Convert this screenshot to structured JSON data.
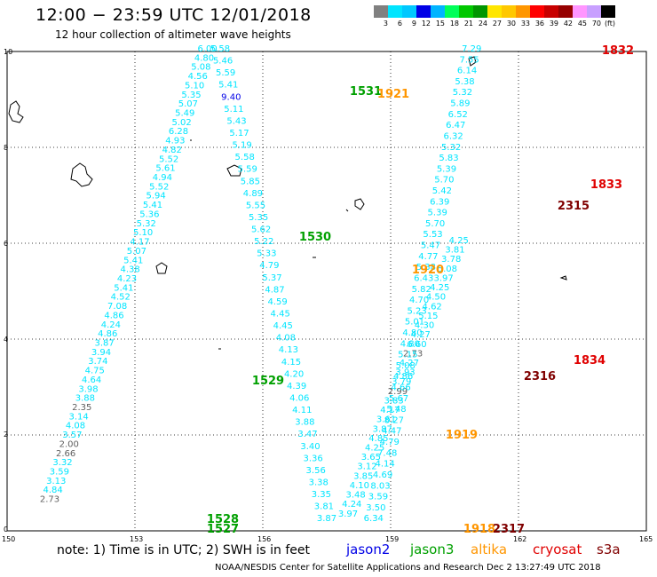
{
  "header": {
    "title": "12:00 − 23:59 UTC 12/01/2018",
    "subtitle": "12 hour collection of altimeter wave heights"
  },
  "colorbar": {
    "labels": [
      "3",
      "6",
      "9",
      "12",
      "15",
      "18",
      "21",
      "24",
      "27",
      "30",
      "33",
      "36",
      "39",
      "42",
      "45",
      "70",
      "(ft)"
    ],
    "colors": [
      "#808080",
      "#00e5ff",
      "#00c8ff",
      "#0000e6",
      "#00b4ff",
      "#00ff5a",
      "#00c800",
      "#009600",
      "#ffe600",
      "#ffc800",
      "#ff9600",
      "#ff0000",
      "#c80000",
      "#960000",
      "#ff96ff",
      "#c8a0ff",
      "#000000"
    ]
  },
  "axes": {
    "x_ticks": [
      "150",
      "153",
      "156",
      "159",
      "162",
      "165"
    ],
    "y_ticks": [
      "0",
      "2",
      "4",
      "6",
      "8",
      "10"
    ]
  },
  "tracks": [
    {
      "id": "track1",
      "color": "#00e5ff",
      "x0": 1.0,
      "y0": 0.6,
      "x1": 4.7,
      "y1": 10.0,
      "values": [
        "2.73",
        "4.84",
        "3.13",
        "3.59",
        "3.32",
        "2.66",
        "2.00",
        "3.57",
        "4.08",
        "3.14",
        "2.35",
        "3.88",
        "3.98",
        "4.64",
        "4.75",
        "3.74",
        "3.94",
        "3.87",
        "4.86",
        "4.24",
        "4.86",
        "7.08",
        "4.52",
        "5.41",
        "4.23",
        "4.38",
        "5.41",
        "5.07",
        "4.17",
        "5.10",
        "5.32",
        "5.36",
        "5.41",
        "5.94",
        "5.52",
        "4.94",
        "5.61",
        "5.52",
        "4.82",
        "4.93",
        "6.28",
        "5.02",
        "5.49",
        "5.07",
        "5.35",
        "5.10",
        "4.56",
        "5.08",
        "4.80",
        "6.00"
      ]
    },
    {
      "id": "track2",
      "color": "#00e5ff",
      "x0": 5.0,
      "y0": 10.0,
      "x1": 7.5,
      "y1": 0.2,
      "values": [
        "5.58",
        "5.46",
        "5.59",
        "5.41",
        "9.40",
        "5.11",
        "5.43",
        "5.17",
        "5.19",
        "5.58",
        "5.59",
        "5.85",
        "4.89",
        "5.55",
        "5.35",
        "5.62",
        "5.22",
        "5.33",
        "4.79",
        "5.37",
        "4.87",
        "4.59",
        "4.45",
        "4.45",
        "4.08",
        "4.13",
        "4.15",
        "4.20",
        "4.39",
        "4.06",
        "4.11",
        "3.88",
        "3.47",
        "3.40",
        "3.36",
        "3.56",
        "3.38",
        "3.35",
        "3.81",
        "3.87"
      ]
    },
    {
      "id": "track3",
      "color": "#00e5ff",
      "x0": 8.0,
      "y0": 0.3,
      "x1": 10.6,
      "y1": 6.0,
      "values": [
        "3.97",
        "4.24",
        "3.48",
        "4.10",
        "3.85",
        "3.12",
        "3.65",
        "4.25",
        "4.85",
        "3.87",
        "3.61",
        "4.17",
        "3.83",
        "2.99",
        "3.79",
        "3.93",
        "4.27",
        "2.73",
        "6.60",
        "4.27",
        "4.30",
        "5.15",
        "4.62",
        "4.50",
        "4.25",
        "3.97",
        "5.08",
        "3.78",
        "3.81",
        "4.25"
      ]
    },
    {
      "id": "track4",
      "color": "#00e5ff",
      "x0": 8.6,
      "y0": 0.2,
      "x1": 10.9,
      "y1": 10.0,
      "values": [
        "6.34",
        "3.50",
        "3.59",
        "8.03",
        "4.69",
        "4.14",
        "7.48",
        "4.79",
        "4.47",
        "8.27",
        "5.48",
        "5.67",
        "4.66",
        "4.86",
        "5.08",
        "5.15",
        "4.80",
        "4.80",
        "5.01",
        "5.23",
        "4.70",
        "5.82",
        "6.43",
        "5.38",
        "4.77",
        "5.47",
        "5.53",
        "5.70",
        "5.39",
        "6.39",
        "5.42",
        "5.70",
        "5.39",
        "5.83",
        "5.32",
        "6.32",
        "6.47",
        "6.52",
        "5.89",
        "5.32",
        "5.38",
        "6.14",
        "7.55",
        "7.29"
      ]
    }
  ],
  "labels": [
    {
      "text": "1832",
      "color": "#e00000"
    },
    {
      "text": "1531",
      "color": "#00a000"
    },
    {
      "text": "1921",
      "color": "#ff9600"
    },
    {
      "text": "1833",
      "color": "#e00000"
    },
    {
      "text": "2315",
      "color": "#800000"
    },
    {
      "text": "1530",
      "color": "#00a000"
    },
    {
      "text": "1920",
      "color": "#ff9600"
    },
    {
      "text": "1834",
      "color": "#e00000"
    },
    {
      "text": "1529",
      "color": "#00a000"
    },
    {
      "text": "2316",
      "color": "#800000"
    },
    {
      "text": "1919",
      "color": "#ff9600"
    },
    {
      "text": "1528",
      "color": "#00a000"
    },
    {
      "text": "1527",
      "color": "#00a000"
    },
    {
      "text": "1918",
      "color": "#ff9600"
    },
    {
      "text": "2317",
      "color": "#800000"
    }
  ],
  "footer": {
    "note": "note:  1) Time is in UTC;  2) SWH is in feet",
    "legend": [
      {
        "text": "jason2",
        "color": "#0000e6"
      },
      {
        "text": "jason3",
        "color": "#00a000"
      },
      {
        "text": "altika",
        "color": "#ff9600"
      },
      {
        "text": "cryosat",
        "color": "#e00000"
      },
      {
        "text": "s3a",
        "color": "#800000"
      }
    ],
    "credit": "NOAA/NESDIS Center for Satellite Applications and Research    Dec  2 13:27:49 UTC 2018"
  }
}
